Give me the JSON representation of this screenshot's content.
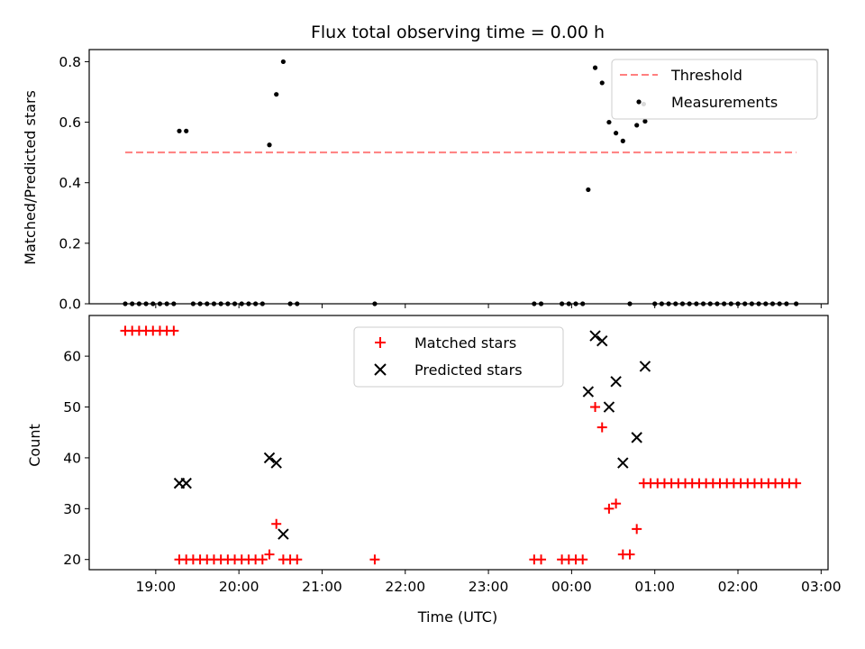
{
  "chart_data": [
    {
      "type": "scatter",
      "title": "Flux total observing time = 0.00 h",
      "xlabel": "",
      "ylabel": "Matched/Predicted stars",
      "xlim": [
        "18:12",
        "03:05"
      ],
      "ylim": [
        0,
        0.84
      ],
      "yticks": [
        "0.0",
        "0.2",
        "0.4",
        "0.6",
        "0.8"
      ],
      "grid": false,
      "legend_position": "top-right",
      "threshold": {
        "name": "Threshold",
        "value": 0.5,
        "x_start": "18:38",
        "x_end": "02:42",
        "color": "#ff7f7f",
        "style": "dashed"
      },
      "series": [
        {
          "name": "Measurements",
          "color": "#000000",
          "marker": "dot",
          "points": [
            [
              "18:38",
              0
            ],
            [
              "18:43",
              0
            ],
            [
              "18:48",
              0
            ],
            [
              "18:53",
              0
            ],
            [
              "18:58",
              0
            ],
            [
              "19:03",
              0
            ],
            [
              "19:08",
              0
            ],
            [
              "19:13",
              0
            ],
            [
              "19:17",
              0.571
            ],
            [
              "19:22",
              0.571
            ],
            [
              "19:27",
              0
            ],
            [
              "19:32",
              0
            ],
            [
              "19:37",
              0
            ],
            [
              "19:42",
              0
            ],
            [
              "19:47",
              0
            ],
            [
              "19:52",
              0
            ],
            [
              "19:57",
              0
            ],
            [
              "20:02",
              0
            ],
            [
              "20:07",
              0
            ],
            [
              "20:12",
              0
            ],
            [
              "20:17",
              0
            ],
            [
              "20:22",
              0.525
            ],
            [
              "20:27",
              0.692
            ],
            [
              "20:32",
              0.8
            ],
            [
              "20:37",
              0
            ],
            [
              "20:42",
              0
            ],
            [
              "21:38",
              0
            ],
            [
              "23:33",
              0
            ],
            [
              "23:38",
              0
            ],
            [
              "23:53",
              0
            ],
            [
              "23:58",
              0
            ],
            [
              "00:03",
              0
            ],
            [
              "00:08",
              0
            ],
            [
              "00:12",
              0.377
            ],
            [
              "00:17",
              0.78
            ],
            [
              "00:22",
              0.73
            ],
            [
              "00:27",
              0.6
            ],
            [
              "00:32",
              0.564
            ],
            [
              "00:37",
              0.538
            ],
            [
              "00:42",
              0
            ],
            [
              "00:47",
              0.59
            ],
            [
              "00:52",
              0.66
            ],
            [
              "00:53",
              0.603
            ],
            [
              "01:00",
              0
            ],
            [
              "01:05",
              0
            ],
            [
              "01:10",
              0
            ],
            [
              "01:15",
              0
            ],
            [
              "01:20",
              0
            ],
            [
              "01:25",
              0
            ],
            [
              "01:30",
              0
            ],
            [
              "01:35",
              0
            ],
            [
              "01:40",
              0
            ],
            [
              "01:45",
              0
            ],
            [
              "01:50",
              0
            ],
            [
              "01:55",
              0
            ],
            [
              "02:00",
              0
            ],
            [
              "02:05",
              0
            ],
            [
              "02:10",
              0
            ],
            [
              "02:15",
              0
            ],
            [
              "02:20",
              0
            ],
            [
              "02:25",
              0
            ],
            [
              "02:30",
              0
            ],
            [
              "02:35",
              0
            ],
            [
              "02:42",
              0
            ]
          ]
        }
      ]
    },
    {
      "type": "scatter",
      "title": "",
      "xlabel": "Time (UTC)",
      "ylabel": "Count",
      "xlim": [
        "18:12",
        "03:05"
      ],
      "ylim": [
        18,
        68
      ],
      "xticks": [
        "19:00",
        "20:00",
        "21:00",
        "22:00",
        "23:00",
        "00:00",
        "01:00",
        "02:00",
        "03:00"
      ],
      "yticks": [
        "20",
        "30",
        "40",
        "50",
        "60"
      ],
      "grid": false,
      "legend_position": "top-center",
      "series": [
        {
          "name": "Matched stars",
          "color": "#ff0000",
          "marker": "plus",
          "points": [
            [
              "18:38",
              65
            ],
            [
              "18:43",
              65
            ],
            [
              "18:48",
              65
            ],
            [
              "18:53",
              65
            ],
            [
              "18:58",
              65
            ],
            [
              "19:03",
              65
            ],
            [
              "19:08",
              65
            ],
            [
              "19:13",
              65
            ],
            [
              "19:17",
              20
            ],
            [
              "19:22",
              20
            ],
            [
              "19:27",
              20
            ],
            [
              "19:32",
              20
            ],
            [
              "19:37",
              20
            ],
            [
              "19:42",
              20
            ],
            [
              "19:47",
              20
            ],
            [
              "19:52",
              20
            ],
            [
              "19:57",
              20
            ],
            [
              "20:02",
              20
            ],
            [
              "20:07",
              20
            ],
            [
              "20:12",
              20
            ],
            [
              "20:17",
              20
            ],
            [
              "20:22",
              21
            ],
            [
              "20:27",
              27
            ],
            [
              "20:32",
              20
            ],
            [
              "20:37",
              20
            ],
            [
              "20:42",
              20
            ],
            [
              "21:38",
              20
            ],
            [
              "23:33",
              20
            ],
            [
              "23:38",
              20
            ],
            [
              "23:53",
              20
            ],
            [
              "23:58",
              20
            ],
            [
              "00:03",
              20
            ],
            [
              "00:08",
              20
            ],
            [
              "00:17",
              50
            ],
            [
              "00:22",
              46
            ],
            [
              "00:27",
              30
            ],
            [
              "00:32",
              31
            ],
            [
              "00:37",
              21
            ],
            [
              "00:42",
              21
            ],
            [
              "00:47",
              26
            ],
            [
              "00:52",
              35
            ],
            [
              "00:57",
              35
            ],
            [
              "01:02",
              35
            ],
            [
              "01:07",
              35
            ],
            [
              "01:12",
              35
            ],
            [
              "01:17",
              35
            ],
            [
              "01:22",
              35
            ],
            [
              "01:27",
              35
            ],
            [
              "01:32",
              35
            ],
            [
              "01:37",
              35
            ],
            [
              "01:42",
              35
            ],
            [
              "01:47",
              35
            ],
            [
              "01:52",
              35
            ],
            [
              "01:57",
              35
            ],
            [
              "02:02",
              35
            ],
            [
              "02:07",
              35
            ],
            [
              "02:12",
              35
            ],
            [
              "02:17",
              35
            ],
            [
              "02:22",
              35
            ],
            [
              "02:27",
              35
            ],
            [
              "02:32",
              35
            ],
            [
              "02:37",
              35
            ],
            [
              "02:42",
              35
            ]
          ]
        },
        {
          "name": "Predicted stars",
          "color": "#000000",
          "marker": "x",
          "points": [
            [
              "19:17",
              35
            ],
            [
              "19:22",
              35
            ],
            [
              "20:22",
              40
            ],
            [
              "20:27",
              39
            ],
            [
              "20:32",
              25
            ],
            [
              "00:12",
              53
            ],
            [
              "00:17",
              64
            ],
            [
              "00:22",
              63
            ],
            [
              "00:27",
              50
            ],
            [
              "00:32",
              55
            ],
            [
              "00:37",
              39
            ],
            [
              "00:47",
              44
            ],
            [
              "00:53",
              58
            ]
          ]
        }
      ]
    }
  ]
}
